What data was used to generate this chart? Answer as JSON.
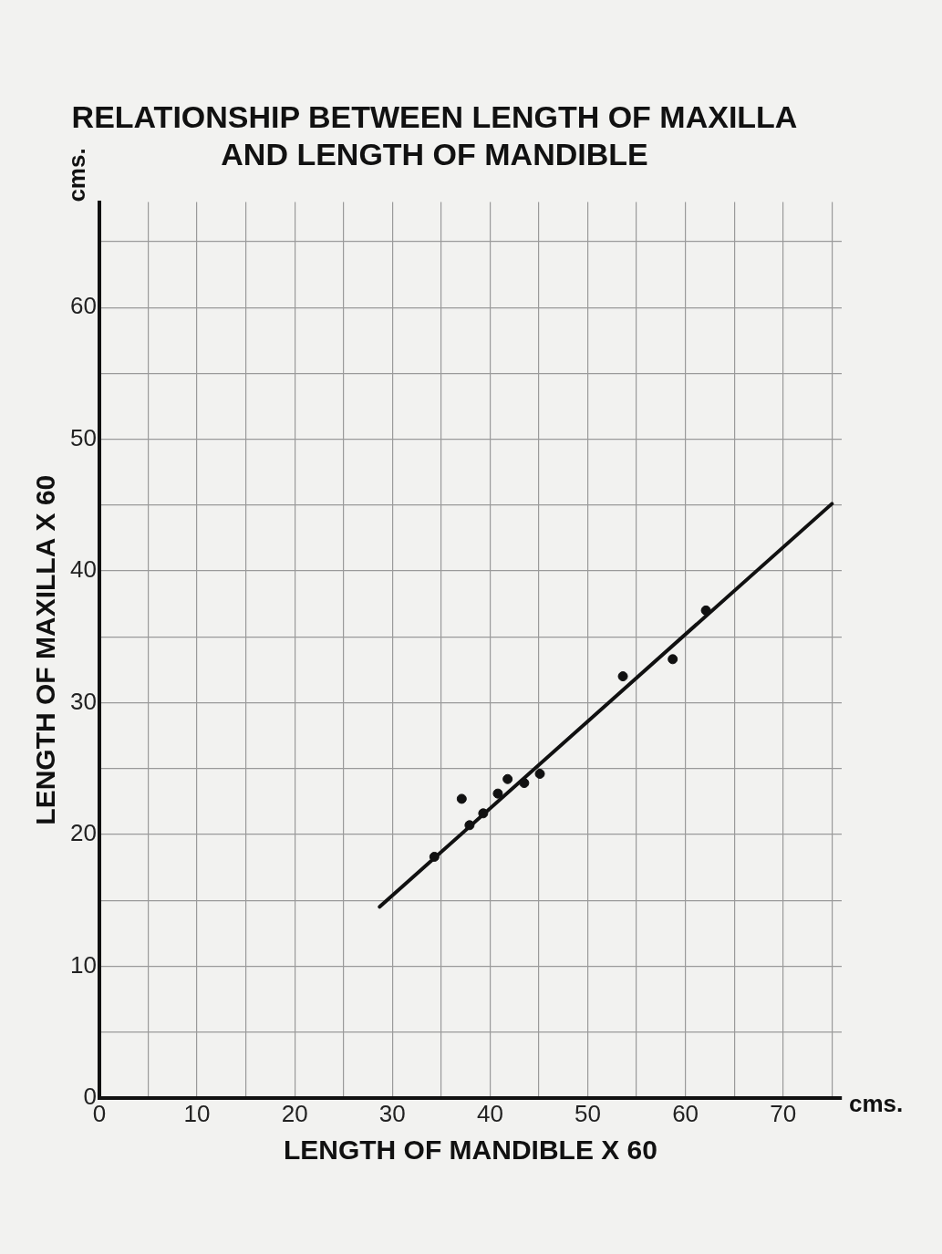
{
  "chart_data": {
    "type": "scatter",
    "title": "RELATIONSHIP BETWEEN LENGTH OF MAXILLA\nAND LENGTH OF MANDIBLE",
    "xlabel": "LENGTH OF MANDIBLE X 60",
    "ylabel": "LENGTH OF MAXILLA X 60",
    "annotations": [
      "cms.",
      "cms."
    ],
    "xlim": [
      0,
      76
    ],
    "ylim": [
      0,
      68
    ],
    "xticks": [
      0,
      {
        "value": 5,
        "label": null
      },
      10,
      {
        "value": 15,
        "label": null
      },
      20,
      {
        "value": 25,
        "label": null
      },
      30,
      {
        "value": 35,
        "label": null
      },
      40,
      {
        "value": 45,
        "label": null
      },
      50,
      {
        "value": 55,
        "label": null
      },
      60,
      {
        "value": 65,
        "label": null
      },
      70,
      {
        "value": 75,
        "label": null
      }
    ],
    "yticks": [
      0,
      {
        "value": 5,
        "label": null
      },
      10,
      {
        "value": 15,
        "label": null
      },
      20,
      {
        "value": 25,
        "label": null
      },
      30,
      {
        "value": 35,
        "label": null
      },
      40,
      {
        "value": 45,
        "label": null
      },
      50,
      {
        "value": 55,
        "label": null
      },
      60,
      {
        "value": 65,
        "label": null
      }
    ],
    "grid": true,
    "legend": false,
    "series": [
      {
        "type": "scatter",
        "color": "#111111",
        "marker": "circle",
        "x": [
          34.3,
          37.1,
          37.9,
          39.3,
          40.8,
          41.8,
          43.5,
          45.1,
          53.6,
          58.7,
          62.1
        ],
        "values": [
          18.3,
          22.7,
          20.7,
          21.6,
          23.1,
          24.2,
          23.9,
          24.6,
          32.0,
          33.3,
          37.0
        ]
      },
      {
        "type": "line",
        "color": "#111111",
        "line_style": "solid",
        "x": [
          28.7,
          75
        ],
        "values": [
          14.5,
          45.1
        ]
      }
    ]
  }
}
